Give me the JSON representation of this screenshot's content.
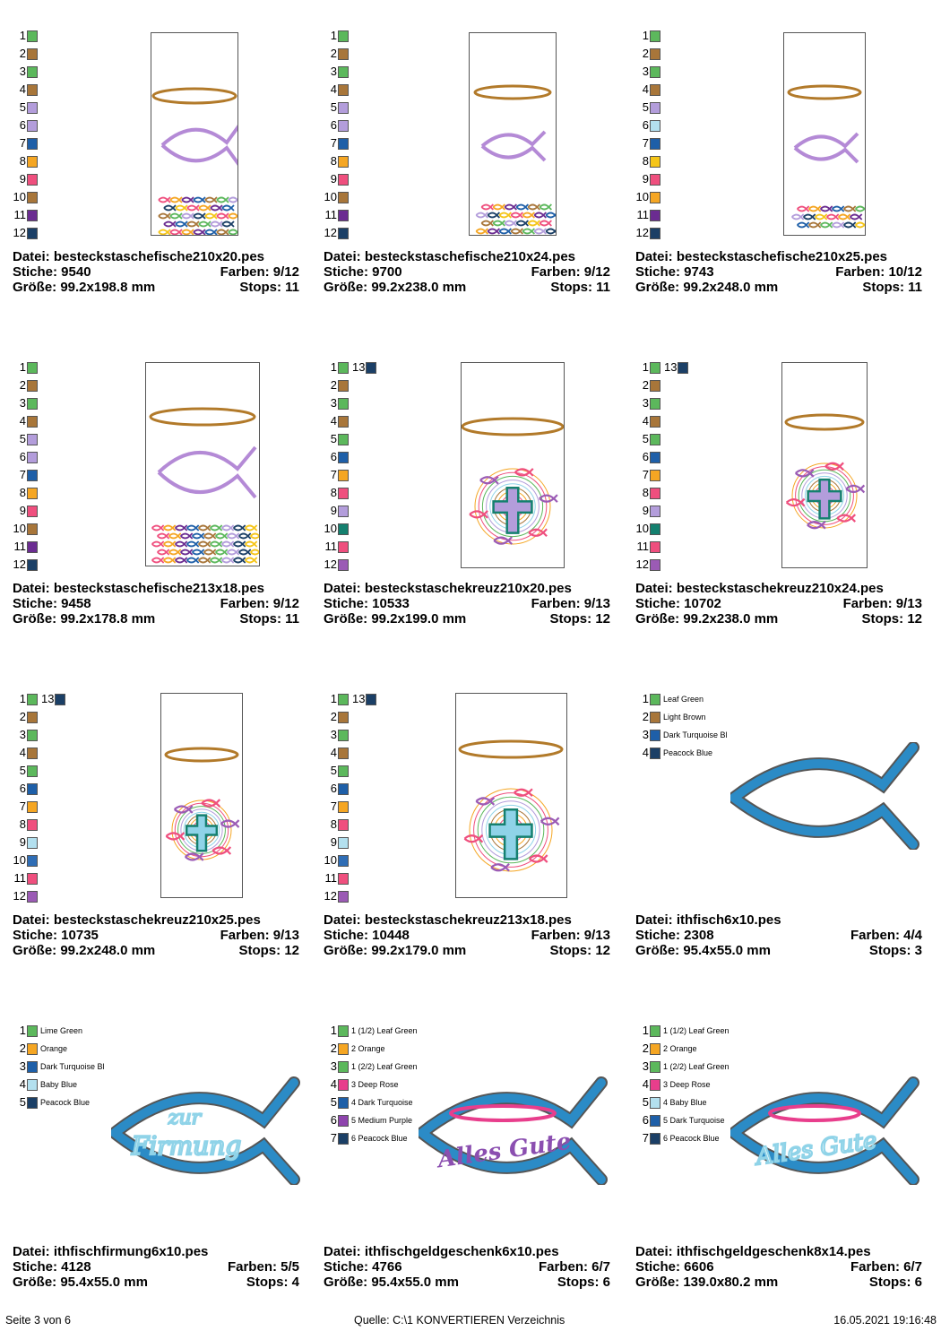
{
  "colors": {
    "green": "#5cb85c",
    "brown": "#a8763a",
    "lilac": "#b39ddb",
    "blue": "#1e5fa8",
    "orange": "#f5a623",
    "pink": "#ef4f7e",
    "purple": "#6b2c91",
    "navy": "#1b3f66",
    "lightblue": "#b3e0ef",
    "yellow": "#f5c518",
    "teal": "#14806f",
    "cobalt": "#2f6db5",
    "violet": "#9b5bb5",
    "mediumpurple": "#8e44ad",
    "deeprose": "#e83e8c",
    "halo": "#b27a2a",
    "fish": "#b48ad6",
    "fishblue": "#2b8bc6",
    "textblue": "#8fd3e8",
    "textpurple": "#8b4fb0",
    "hoopline": "#555555"
  },
  "cards": [
    {
      "palette": [
        {
          "n": "1",
          "c": "#5cb85c"
        },
        {
          "n": "2",
          "c": "#a8763a"
        },
        {
          "n": "3",
          "c": "#5cb85c"
        },
        {
          "n": "4",
          "c": "#a8763a"
        },
        {
          "n": "5",
          "c": "#b39ddb"
        },
        {
          "n": "6",
          "c": "#b39ddb"
        },
        {
          "n": "7",
          "c": "#1e5fa8"
        },
        {
          "n": "8",
          "c": "#f5a623"
        },
        {
          "n": "9",
          "c": "#ef4f7e"
        },
        {
          "n": "10",
          "c": "#a8763a"
        },
        {
          "n": "11",
          "c": "#6b2c91"
        },
        {
          "n": "12",
          "c": "#1b3f66"
        }
      ],
      "file_label": "Datei: besteckstaschefische210x20.pes",
      "stitches_label": "Stiche: 9540",
      "colors_label": "Farben: 9/12",
      "size_label": "Größe: 99.2x198.8 mm",
      "stops_label": "Stops: 11"
    },
    {
      "palette": [
        {
          "n": "1",
          "c": "#5cb85c"
        },
        {
          "n": "2",
          "c": "#a8763a"
        },
        {
          "n": "3",
          "c": "#5cb85c"
        },
        {
          "n": "4",
          "c": "#a8763a"
        },
        {
          "n": "5",
          "c": "#b39ddb"
        },
        {
          "n": "6",
          "c": "#b39ddb"
        },
        {
          "n": "7",
          "c": "#1e5fa8"
        },
        {
          "n": "8",
          "c": "#f5a623"
        },
        {
          "n": "9",
          "c": "#ef4f7e"
        },
        {
          "n": "10",
          "c": "#a8763a"
        },
        {
          "n": "11",
          "c": "#6b2c91"
        },
        {
          "n": "12",
          "c": "#1b3f66"
        }
      ],
      "file_label": "Datei: besteckstaschefische210x24.pes",
      "stitches_label": "Stiche: 9700",
      "colors_label": "Farben: 9/12",
      "size_label": "Größe: 99.2x238.0 mm",
      "stops_label": "Stops: 11"
    },
    {
      "palette": [
        {
          "n": "1",
          "c": "#5cb85c"
        },
        {
          "n": "2",
          "c": "#a8763a"
        },
        {
          "n": "3",
          "c": "#5cb85c"
        },
        {
          "n": "4",
          "c": "#a8763a"
        },
        {
          "n": "5",
          "c": "#b39ddb"
        },
        {
          "n": "6",
          "c": "#b3e0ef"
        },
        {
          "n": "7",
          "c": "#1e5fa8"
        },
        {
          "n": "8",
          "c": "#f5c518"
        },
        {
          "n": "9",
          "c": "#ef4f7e"
        },
        {
          "n": "10",
          "c": "#f5a623"
        },
        {
          "n": "11",
          "c": "#6b2c91"
        },
        {
          "n": "12",
          "c": "#1b3f66"
        }
      ],
      "file_label": "Datei: besteckstaschefische210x25.pes",
      "stitches_label": "Stiche: 9743",
      "colors_label": "Farben: 10/12",
      "size_label": "Größe: 99.2x248.0 mm",
      "stops_label": "Stops: 11"
    },
    {
      "palette": [
        {
          "n": "1",
          "c": "#5cb85c"
        },
        {
          "n": "2",
          "c": "#a8763a"
        },
        {
          "n": "3",
          "c": "#5cb85c"
        },
        {
          "n": "4",
          "c": "#a8763a"
        },
        {
          "n": "5",
          "c": "#b39ddb"
        },
        {
          "n": "6",
          "c": "#b39ddb"
        },
        {
          "n": "7",
          "c": "#1e5fa8"
        },
        {
          "n": "8",
          "c": "#f5a623"
        },
        {
          "n": "9",
          "c": "#ef4f7e"
        },
        {
          "n": "10",
          "c": "#a8763a"
        },
        {
          "n": "11",
          "c": "#6b2c91"
        },
        {
          "n": "12",
          "c": "#1b3f66"
        }
      ],
      "file_label": "Datei: besteckstaschefische213x18.pes",
      "stitches_label": "Stiche: 9458",
      "colors_label": "Farben: 9/12",
      "size_label": "Größe: 99.2x178.8 mm",
      "stops_label": "Stops: 11"
    },
    {
      "palette": [
        {
          "n": "1",
          "c": "#5cb85c"
        },
        {
          "n": "2",
          "c": "#a8763a"
        },
        {
          "n": "3",
          "c": "#5cb85c"
        },
        {
          "n": "4",
          "c": "#a8763a"
        },
        {
          "n": "5",
          "c": "#5cb85c"
        },
        {
          "n": "6",
          "c": "#1e5fa8"
        },
        {
          "n": "7",
          "c": "#f5a623"
        },
        {
          "n": "8",
          "c": "#ef4f7e"
        },
        {
          "n": "9",
          "c": "#b39ddb"
        },
        {
          "n": "10",
          "c": "#14806f"
        },
        {
          "n": "11",
          "c": "#ef4f7e"
        },
        {
          "n": "12",
          "c": "#9b5bb5"
        }
      ],
      "extra": {
        "n": "13",
        "c": "#1b3f66"
      },
      "file_label": "Datei: besteckstaschekreuz210x20.pes",
      "stitches_label": "Stiche: 10533",
      "colors_label": "Farben: 9/13",
      "size_label": "Größe: 99.2x199.0 mm",
      "stops_label": "Stops: 12"
    },
    {
      "palette": [
        {
          "n": "1",
          "c": "#5cb85c"
        },
        {
          "n": "2",
          "c": "#a8763a"
        },
        {
          "n": "3",
          "c": "#5cb85c"
        },
        {
          "n": "4",
          "c": "#a8763a"
        },
        {
          "n": "5",
          "c": "#5cb85c"
        },
        {
          "n": "6",
          "c": "#1e5fa8"
        },
        {
          "n": "7",
          "c": "#f5a623"
        },
        {
          "n": "8",
          "c": "#ef4f7e"
        },
        {
          "n": "9",
          "c": "#b39ddb"
        },
        {
          "n": "10",
          "c": "#14806f"
        },
        {
          "n": "11",
          "c": "#ef4f7e"
        },
        {
          "n": "12",
          "c": "#9b5bb5"
        }
      ],
      "extra": {
        "n": "13",
        "c": "#1b3f66"
      },
      "file_label": "Datei: besteckstaschekreuz210x24.pes",
      "stitches_label": "Stiche: 10702",
      "colors_label": "Farben: 9/13",
      "size_label": "Größe: 99.2x238.0 mm",
      "stops_label": "Stops: 12"
    },
    {
      "palette": [
        {
          "n": "1",
          "c": "#5cb85c"
        },
        {
          "n": "2",
          "c": "#a8763a"
        },
        {
          "n": "3",
          "c": "#5cb85c"
        },
        {
          "n": "4",
          "c": "#a8763a"
        },
        {
          "n": "5",
          "c": "#5cb85c"
        },
        {
          "n": "6",
          "c": "#1e5fa8"
        },
        {
          "n": "7",
          "c": "#f5a623"
        },
        {
          "n": "8",
          "c": "#ef4f7e"
        },
        {
          "n": "9",
          "c": "#b3e0ef"
        },
        {
          "n": "10",
          "c": "#2f6db5"
        },
        {
          "n": "11",
          "c": "#ef4f7e"
        },
        {
          "n": "12",
          "c": "#9b5bb5"
        }
      ],
      "extra": {
        "n": "13",
        "c": "#1b3f66"
      },
      "file_label": "Datei: besteckstaschekreuz210x25.pes",
      "stitches_label": "Stiche: 10735",
      "colors_label": "Farben: 9/13",
      "size_label": "Größe: 99.2x248.0 mm",
      "stops_label": "Stops: 12"
    },
    {
      "palette": [
        {
          "n": "1",
          "c": "#5cb85c"
        },
        {
          "n": "2",
          "c": "#a8763a"
        },
        {
          "n": "3",
          "c": "#5cb85c"
        },
        {
          "n": "4",
          "c": "#a8763a"
        },
        {
          "n": "5",
          "c": "#5cb85c"
        },
        {
          "n": "6",
          "c": "#1e5fa8"
        },
        {
          "n": "7",
          "c": "#f5a623"
        },
        {
          "n": "8",
          "c": "#ef4f7e"
        },
        {
          "n": "9",
          "c": "#b3e0ef"
        },
        {
          "n": "10",
          "c": "#2f6db5"
        },
        {
          "n": "11",
          "c": "#ef4f7e"
        },
        {
          "n": "12",
          "c": "#9b5bb5"
        }
      ],
      "extra": {
        "n": "13",
        "c": "#1b3f66"
      },
      "file_label": "Datei: besteckstaschekreuz213x18.pes",
      "stitches_label": "Stiche: 10448",
      "colors_label": "Farben: 9/13",
      "size_label": "Größe: 99.2x179.0 mm",
      "stops_label": "Stops: 12"
    },
    {
      "palette": [
        {
          "n": "1",
          "c": "#5cb85c",
          "name": "Leaf Green"
        },
        {
          "n": "2",
          "c": "#a8763a",
          "name": "Light Brown"
        },
        {
          "n": "3",
          "c": "#1e5fa8",
          "name": "Dark Turquoise Bl"
        },
        {
          "n": "4",
          "c": "#1b3f66",
          "name": "Peacock Blue"
        }
      ],
      "file_label": "Datei: ithfisch6x10.pes",
      "stitches_label": "Stiche: 2308",
      "colors_label": "Farben: 4/4",
      "size_label": "Größe: 95.4x55.0 mm",
      "stops_label": "Stops: 3"
    },
    {
      "palette": [
        {
          "n": "1",
          "c": "#5cb85c",
          "name": "Lime Green"
        },
        {
          "n": "2",
          "c": "#f5a623",
          "name": "Orange"
        },
        {
          "n": "3",
          "c": "#1e5fa8",
          "name": "Dark Turquoise Bl"
        },
        {
          "n": "4",
          "c": "#b3e0ef",
          "name": "Baby Blue"
        },
        {
          "n": "5",
          "c": "#1b3f66",
          "name": "Peacock Blue"
        }
      ],
      "text_line1": "zur",
      "text_line2": "Firmung",
      "file_label": "Datei: ithfischfirmung6x10.pes",
      "stitches_label": "Stiche: 4128",
      "colors_label": "Farben: 5/5",
      "size_label": "Größe: 95.4x55.0 mm",
      "stops_label": "Stops: 4"
    },
    {
      "palette": [
        {
          "n": "1",
          "c": "#5cb85c",
          "name": "1 (1/2) Leaf Green"
        },
        {
          "n": "2",
          "c": "#f5a623",
          "name": "2 Orange"
        },
        {
          "n": "3",
          "c": "#5cb85c",
          "name": "1 (2/2) Leaf Green"
        },
        {
          "n": "4",
          "c": "#e83e8c",
          "name": "3 Deep Rose"
        },
        {
          "n": "5",
          "c": "#1e5fa8",
          "name": "4 Dark Turquoise"
        },
        {
          "n": "6",
          "c": "#8e44ad",
          "name": "5 Medium Purple"
        },
        {
          "n": "7",
          "c": "#1b3f66",
          "name": "6 Peacock Blue"
        }
      ],
      "text_line1": "Alles Gute",
      "file_label": "Datei: ithfischgeldgeschenk6x10.pes",
      "stitches_label": "Stiche: 4766",
      "colors_label": "Farben: 6/7",
      "size_label": "Größe: 95.4x55.0 mm",
      "stops_label": "Stops: 6"
    },
    {
      "palette": [
        {
          "n": "1",
          "c": "#5cb85c",
          "name": "1 (1/2) Leaf Green"
        },
        {
          "n": "2",
          "c": "#f5a623",
          "name": "2 Orange"
        },
        {
          "n": "3",
          "c": "#5cb85c",
          "name": "1 (2/2) Leaf Green"
        },
        {
          "n": "4",
          "c": "#e83e8c",
          "name": "3 Deep Rose"
        },
        {
          "n": "5",
          "c": "#b3e0ef",
          "name": "4 Baby Blue"
        },
        {
          "n": "6",
          "c": "#1e5fa8",
          "name": "5 Dark Turquoise"
        },
        {
          "n": "7",
          "c": "#1b3f66",
          "name": "6 Peacock Blue"
        }
      ],
      "text_line1": "Alles Gute",
      "file_label": "Datei: ithfischgeldgeschenk8x14.pes",
      "stitches_label": "Stiche: 6606",
      "colors_label": "Farben: 6/7",
      "size_label": "Größe: 139.0x80.2 mm",
      "stops_label": "Stops: 6"
    }
  ],
  "footer": {
    "page_label": "Seite 3 von 6",
    "source_label": "Quelle: C:\\1 KONVERTIEREN Verzeichnis",
    "timestamp": "16.05.2021 19:16:48"
  }
}
